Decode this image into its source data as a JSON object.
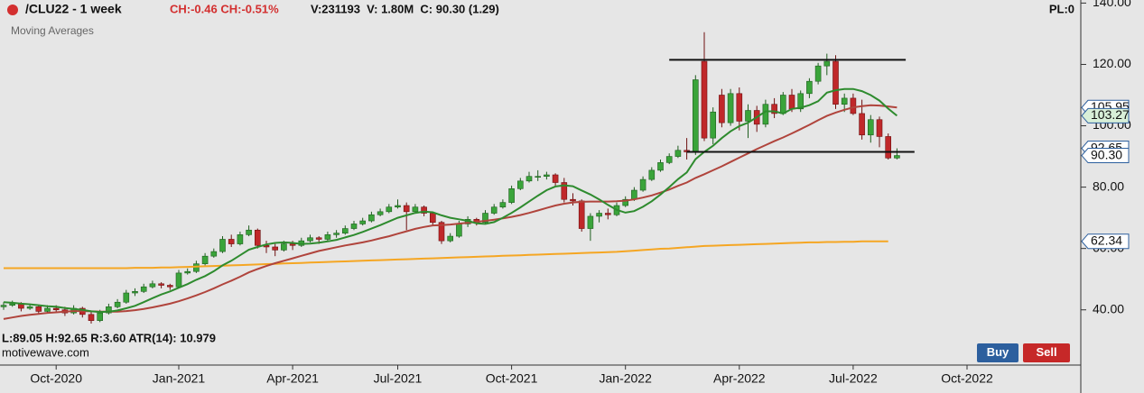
{
  "chart_data": {
    "type": "candlestick",
    "title": "/CLU22 - 1 week",
    "subtitle": "Moving Averages",
    "annotations": [
      "CH:-0.46 CH:-0.51%",
      "V:231193  V: 1.80M  C: 90.30 (1.29)",
      "PL:0",
      "L:89.05 H:92.65 R:3.60 ATR(14): 10.979",
      "motivewave.com"
    ],
    "buttons": [
      "Buy",
      "Sell"
    ],
    "up_color": "#3aa43a",
    "down_color": "#c0282a",
    "ylim": [
      22,
      141
    ],
    "yticks": [
      {
        "value": 140,
        "label": "140.00"
      },
      {
        "value": 120,
        "label": "120.00"
      },
      {
        "value": 100,
        "label": "100.00"
      },
      {
        "value": 80,
        "label": "80.00"
      },
      {
        "value": 60,
        "label": "60.00"
      },
      {
        "value": 40,
        "label": "40.00"
      }
    ],
    "categories": [
      null,
      null,
      null,
      null,
      null,
      null,
      "Oct-2020",
      null,
      null,
      null,
      null,
      null,
      null,
      null,
      null,
      null,
      null,
      null,
      null,
      null,
      "Jan-2021",
      null,
      null,
      null,
      null,
      null,
      null,
      null,
      null,
      null,
      null,
      null,
      null,
      "Apr-2021",
      null,
      null,
      null,
      null,
      null,
      null,
      null,
      null,
      null,
      null,
      null,
      "Jul-2021",
      null,
      null,
      null,
      null,
      null,
      null,
      null,
      null,
      null,
      null,
      null,
      null,
      "Oct-2021",
      null,
      null,
      null,
      null,
      null,
      null,
      null,
      null,
      null,
      null,
      null,
      null,
      "Jan-2022",
      null,
      null,
      null,
      null,
      null,
      null,
      null,
      null,
      null,
      null,
      null,
      null,
      "Apr-2022",
      null,
      null,
      null,
      null,
      null,
      null,
      null,
      null,
      null,
      null,
      null,
      null,
      "Jul-2022",
      null,
      null,
      null,
      null,
      null,
      null,
      null,
      null,
      null,
      null,
      null,
      null,
      "Oct-2022",
      null,
      null,
      null,
      null,
      null,
      null,
      null,
      null,
      null,
      null,
      null,
      null
    ],
    "open": [
      41.0,
      41.5,
      42.0,
      40.5,
      41.0,
      39.5,
      40.5,
      40.0,
      39.0,
      40.5,
      38.5,
      36.5,
      39.0,
      41.0,
      42.5,
      45.5,
      46.0,
      47.5,
      48.5,
      48.0,
      47.5,
      52.0,
      52.5,
      55.0,
      57.5,
      59.0,
      63.0,
      61.5,
      64.5,
      66.0,
      61.0,
      60.5,
      59.5,
      61.5,
      61.0,
      62.5,
      63.5,
      63.0,
      64.5,
      65.0,
      66.5,
      68.0,
      69.0,
      71.0,
      72.0,
      73.5,
      74.0,
      72.0,
      73.5,
      71.5,
      68.5,
      62.5,
      64.0,
      68.0,
      69.5,
      68.5,
      71.5,
      73.5,
      75.0,
      79.5,
      82.0,
      83.5,
      83.5,
      84.0,
      81.5,
      76.0,
      75.5,
      66.5,
      70.5,
      71.5,
      71.0,
      74.0,
      76.0,
      79.0,
      82.5,
      85.5,
      88.0,
      90.0,
      92.0,
      91.5,
      121.0,
      96.0,
      110.0,
      101.0,
      110.5,
      101.5,
      105.0,
      100.5,
      107.0,
      104.0,
      110.0,
      105.5,
      110.5,
      114.5,
      119.5,
      121.0,
      107.0,
      109.0,
      104.0,
      97.0,
      102.0,
      96.5,
      89.5,
      null,
      null,
      null,
      null,
      null,
      null,
      null,
      null,
      null,
      null,
      null,
      null,
      null,
      null,
      null,
      null,
      null,
      null,
      null,
      null
    ],
    "high": [
      42.5,
      43.0,
      42.5,
      42.0,
      41.5,
      41.5,
      41.5,
      41.0,
      41.5,
      41.0,
      39.5,
      40.0,
      42.0,
      43.5,
      46.5,
      47.0,
      48.5,
      49.5,
      49.0,
      48.5,
      53.0,
      53.5,
      56.0,
      58.5,
      60.0,
      64.0,
      64.5,
      65.5,
      67.5,
      66.5,
      62.5,
      61.5,
      62.5,
      62.5,
      63.5,
      64.5,
      64.0,
      65.5,
      66.0,
      67.5,
      69.0,
      70.0,
      72.0,
      73.0,
      74.5,
      76.0,
      75.0,
      74.5,
      74.0,
      72.0,
      69.0,
      65.0,
      69.0,
      70.5,
      70.0,
      72.5,
      74.5,
      76.0,
      80.5,
      83.0,
      85.0,
      85.5,
      85.0,
      84.5,
      83.0,
      78.0,
      76.0,
      71.5,
      72.5,
      73.0,
      75.0,
      77.0,
      80.0,
      83.5,
      86.5,
      89.0,
      91.0,
      93.5,
      96.0,
      116.5,
      130.5,
      106.0,
      112.0,
      112.0,
      112.5,
      107.0,
      106.5,
      108.5,
      109.0,
      111.0,
      112.0,
      111.5,
      115.5,
      120.5,
      123.5,
      123.0,
      110.5,
      110.5,
      108.5,
      103.5,
      103.0,
      97.5,
      92.65,
      null,
      null,
      null,
      null,
      null,
      null,
      null,
      null,
      null,
      null,
      null,
      null,
      null,
      null,
      null,
      null,
      null,
      null,
      null,
      null
    ],
    "low": [
      40.0,
      41.0,
      39.5,
      40.0,
      38.5,
      39.0,
      39.0,
      38.0,
      38.5,
      37.5,
      35.5,
      36.0,
      38.5,
      40.5,
      42.0,
      44.5,
      45.5,
      47.0,
      47.0,
      46.5,
      47.0,
      51.5,
      52.0,
      54.5,
      57.0,
      58.5,
      60.5,
      61.0,
      64.0,
      60.0,
      58.5,
      57.5,
      59.0,
      59.5,
      60.5,
      62.0,
      61.5,
      62.5,
      63.5,
      64.5,
      66.0,
      67.5,
      68.5,
      70.5,
      71.5,
      73.0,
      66.0,
      71.5,
      70.5,
      67.5,
      61.5,
      62.0,
      63.5,
      67.0,
      67.5,
      68.0,
      71.0,
      73.0,
      74.5,
      79.0,
      81.5,
      82.0,
      82.5,
      80.5,
      75.0,
      74.0,
      65.5,
      62.5,
      68.5,
      69.5,
      70.5,
      73.5,
      75.5,
      78.5,
      82.0,
      85.0,
      87.5,
      89.5,
      89.0,
      90.5,
      95.0,
      94.0,
      99.5,
      100.0,
      98.5,
      96.0,
      98.0,
      99.5,
      102.5,
      103.5,
      104.5,
      104.5,
      109.0,
      113.5,
      116.5,
      105.5,
      104.5,
      103.5,
      95.5,
      94.5,
      93.0,
      89.0,
      89.05,
      null,
      null,
      null,
      null,
      null,
      null,
      null,
      null,
      null,
      null,
      null,
      null,
      null,
      null,
      null,
      null,
      null,
      null,
      null,
      null
    ],
    "close": [
      41.5,
      42.0,
      40.5,
      41.0,
      39.5,
      40.5,
      40.0,
      39.0,
      40.5,
      38.5,
      36.5,
      39.0,
      41.0,
      42.5,
      45.5,
      46.0,
      47.5,
      48.5,
      48.0,
      47.5,
      52.0,
      52.5,
      55.0,
      57.5,
      59.0,
      63.0,
      61.5,
      64.5,
      66.0,
      61.0,
      60.5,
      59.5,
      61.5,
      61.0,
      62.5,
      63.5,
      63.0,
      64.5,
      65.0,
      66.5,
      68.0,
      69.0,
      71.0,
      72.0,
      73.5,
      74.0,
      72.0,
      73.5,
      71.5,
      68.5,
      62.5,
      64.0,
      68.0,
      69.5,
      68.5,
      71.5,
      73.5,
      75.0,
      79.5,
      82.0,
      83.5,
      83.5,
      84.0,
      81.5,
      76.0,
      75.5,
      66.5,
      70.5,
      71.5,
      71.0,
      74.0,
      76.0,
      79.0,
      82.5,
      85.5,
      88.0,
      90.0,
      92.0,
      91.5,
      115.0,
      96.0,
      104.5,
      101.0,
      110.5,
      101.5,
      105.0,
      100.5,
      107.0,
      104.0,
      110.0,
      105.5,
      110.5,
      114.5,
      119.5,
      121.0,
      107.0,
      109.0,
      104.0,
      97.0,
      102.0,
      96.5,
      89.5,
      90.3,
      null,
      null,
      null,
      null,
      null,
      null,
      null,
      null,
      null,
      null,
      null,
      null,
      null,
      null,
      null,
      null,
      null,
      null,
      null,
      null
    ],
    "series": [
      {
        "color": "#f5a623",
        "values": [
          53.6,
          53.6,
          53.6,
          53.6,
          53.6,
          53.6,
          53.6,
          53.6,
          53.6,
          53.6,
          53.6,
          53.6,
          53.6,
          53.6,
          53.6,
          53.7,
          53.7,
          53.7,
          53.8,
          53.8,
          53.9,
          54.0,
          54.1,
          54.2,
          54.3,
          54.4,
          54.5,
          54.6,
          54.7,
          54.8,
          54.9,
          55.0,
          55.1,
          55.2,
          55.3,
          55.4,
          55.5,
          55.6,
          55.7,
          55.8,
          55.9,
          56.0,
          56.1,
          56.2,
          56.3,
          56.4,
          56.5,
          56.6,
          56.7,
          56.8,
          56.9,
          57.0,
          57.1,
          57.2,
          57.3,
          57.4,
          57.5,
          57.6,
          57.7,
          57.8,
          57.9,
          58.0,
          58.1,
          58.2,
          58.3,
          58.4,
          58.5,
          58.6,
          58.7,
          58.8,
          58.9,
          59.1,
          59.3,
          59.5,
          59.7,
          59.9,
          60.0,
          60.2,
          60.4,
          60.6,
          60.8,
          60.9,
          61.0,
          61.1,
          61.2,
          61.3,
          61.4,
          61.5,
          61.6,
          61.7,
          61.8,
          61.9,
          62.0,
          62.0,
          62.1,
          62.1,
          62.2,
          62.2,
          62.3,
          62.3,
          62.3,
          62.34,
          null,
          null,
          null,
          null,
          null,
          null,
          null,
          null,
          null,
          null,
          null,
          null,
          null,
          null,
          null,
          null,
          null,
          null,
          null,
          null,
          null
        ]
      },
      {
        "color": "#b0443c",
        "values": [
          37.0,
          37.5,
          38.0,
          38.4,
          38.7,
          39.0,
          39.2,
          39.4,
          39.6,
          39.6,
          39.5,
          39.4,
          39.4,
          39.4,
          39.6,
          39.9,
          40.3,
          40.8,
          41.4,
          42.0,
          42.8,
          43.7,
          44.7,
          45.8,
          47.0,
          48.3,
          49.5,
          50.8,
          52.2,
          53.3,
          54.3,
          55.2,
          56.0,
          56.8,
          57.6,
          58.4,
          59.2,
          59.8,
          60.4,
          61.0,
          61.5,
          62.0,
          62.6,
          63.3,
          64.0,
          64.8,
          65.6,
          66.4,
          67.0,
          67.5,
          67.6,
          67.8,
          68.1,
          68.4,
          68.7,
          69.0,
          69.4,
          69.8,
          70.3,
          70.9,
          71.6,
          72.4,
          73.2,
          74.0,
          74.6,
          75.0,
          75.2,
          75.3,
          75.3,
          75.3,
          75.4,
          75.6,
          76.0,
          76.6,
          77.3,
          78.2,
          79.2,
          80.4,
          81.5,
          83.0,
          84.2,
          85.5,
          86.8,
          88.2,
          89.6,
          91.0,
          92.4,
          93.7,
          95.0,
          96.2,
          97.5,
          98.9,
          100.3,
          101.8,
          103.2,
          104.3,
          105.2,
          106.0,
          106.4,
          106.7,
          106.6,
          106.3,
          105.95,
          null,
          null,
          null,
          null,
          null,
          null,
          null,
          null,
          null,
          null,
          null,
          null,
          null,
          null,
          null,
          null,
          null,
          null,
          null,
          null
        ]
      },
      {
        "color": "#2e8b2e",
        "values": [
          42.5,
          42.3,
          42.0,
          41.8,
          41.5,
          41.2,
          41.0,
          40.6,
          40.3,
          40.0,
          39.5,
          39.3,
          39.4,
          39.8,
          40.5,
          41.3,
          42.5,
          43.8,
          45.0,
          46.0,
          47.2,
          48.4,
          49.8,
          51.0,
          52.6,
          54.5,
          56.0,
          57.8,
          59.6,
          60.5,
          61.3,
          61.8,
          62.0,
          61.8,
          61.5,
          61.6,
          61.9,
          62.3,
          62.8,
          63.6,
          64.4,
          65.4,
          66.5,
          67.6,
          68.8,
          70.0,
          70.8,
          71.6,
          72.0,
          71.8,
          70.8,
          70.0,
          69.5,
          69.0,
          68.2,
          68.0,
          68.6,
          70.0,
          71.6,
          73.4,
          75.3,
          77.2,
          79.0,
          80.2,
          80.6,
          80.3,
          78.9,
          77.6,
          76.0,
          74.2,
          72.6,
          71.7,
          72.2,
          73.6,
          75.4,
          77.6,
          80.0,
          82.6,
          84.8,
          89.1,
          91.5,
          93.5,
          96.0,
          98.2,
          99.9,
          101.0,
          102.8,
          104.7,
          104.7,
          104.0,
          105.5,
          105.9,
          106.7,
          108.0,
          110.8,
          111.6,
          112.0,
          112.0,
          111.3,
          110.0,
          108.2,
          105.6,
          103.27,
          null,
          null,
          null,
          null,
          null,
          null,
          null,
          null,
          null,
          null,
          null,
          null,
          null,
          null,
          null,
          null,
          null,
          null,
          null,
          null
        ]
      }
    ],
    "hlines": [
      {
        "value": 121.5,
        "from": 76,
        "to": 103
      },
      {
        "value": 91.5,
        "from": 78,
        "to": 104
      }
    ],
    "price_markers": [
      {
        "value": 62.34,
        "label": "62.34",
        "color": "#ffffff"
      },
      {
        "value": 92.65,
        "label": "92.65",
        "color": "#ffffff"
      },
      {
        "value": 105.95,
        "label": "105.95",
        "color": "#ffffff"
      },
      {
        "value": 103.27,
        "label": "103.27",
        "color": "#d8efd8"
      },
      {
        "value": 90.3,
        "label": "90.30",
        "color": "#ffffff"
      }
    ]
  }
}
